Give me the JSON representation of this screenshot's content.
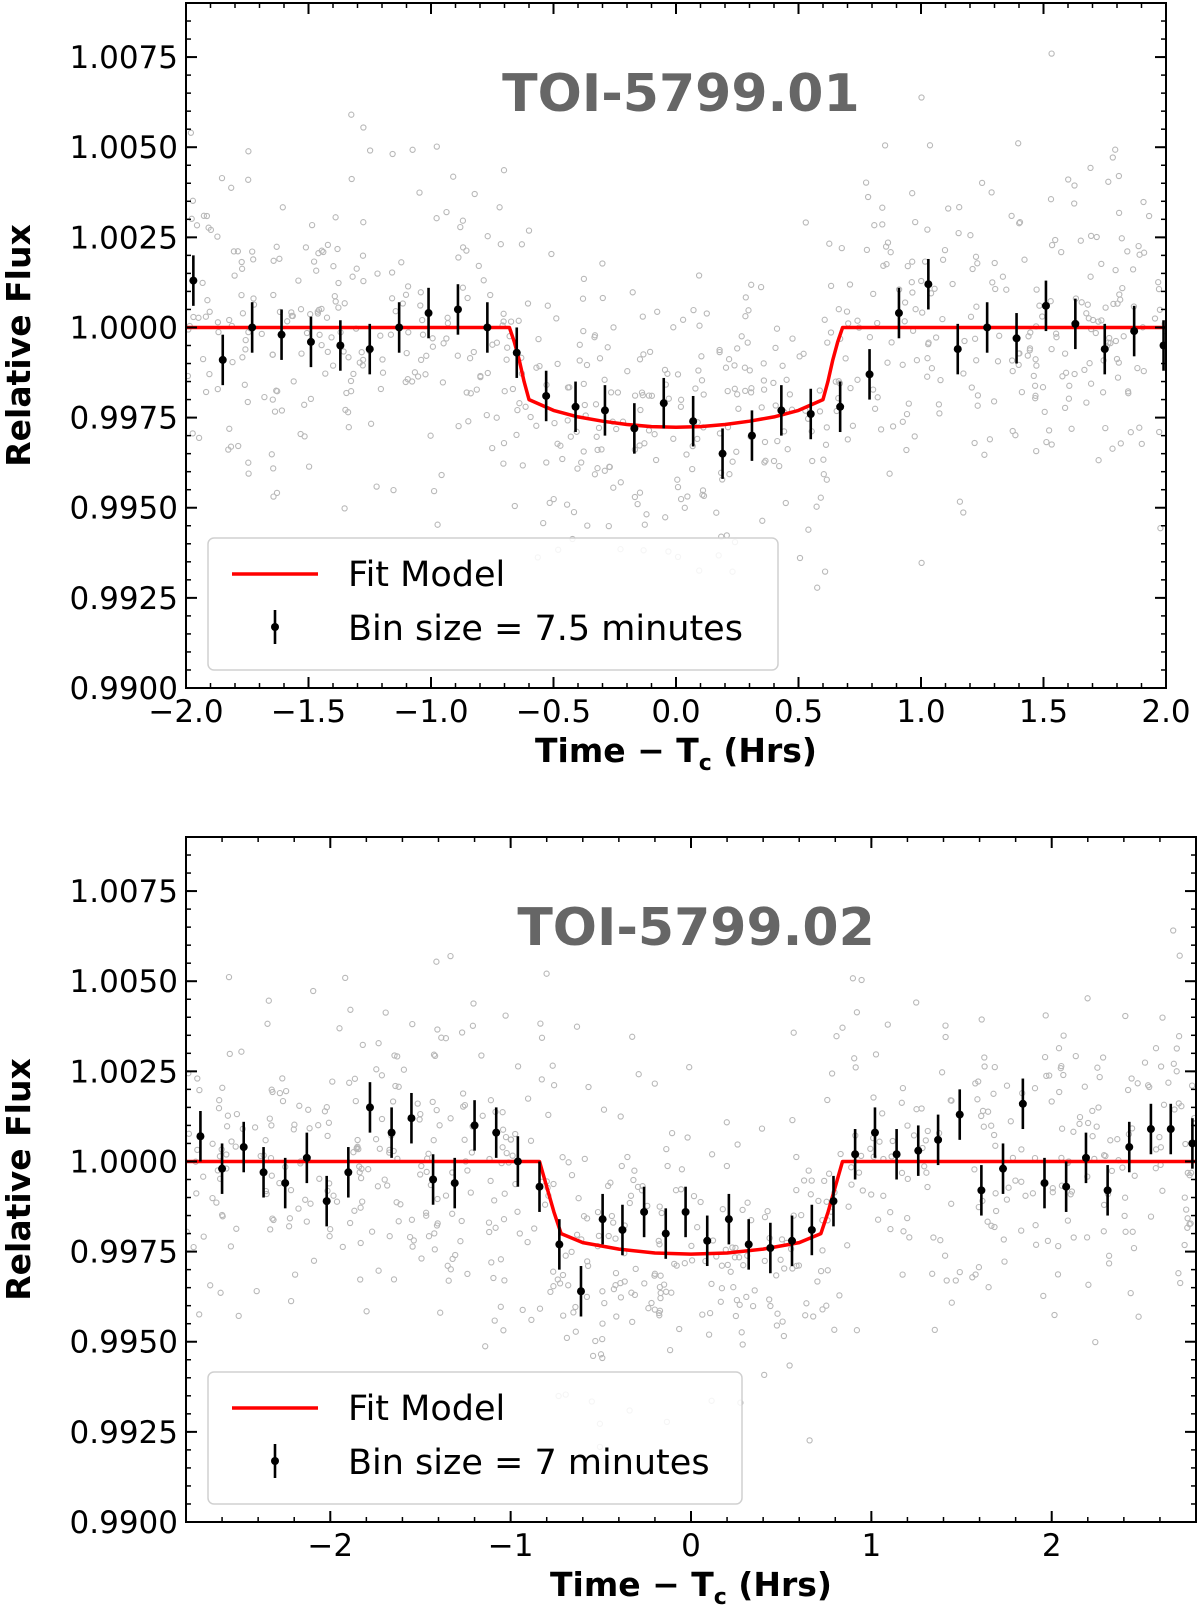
{
  "colors": {
    "model": "#ff0000",
    "binned": "#000000",
    "raw": "#b8b8b8",
    "title": "#666666"
  },
  "chart_data": [
    {
      "type": "scatter",
      "title": "TOI-5799.01",
      "xlabel": "Time − T",
      "xlabel_sub": "c",
      "xlabel_suffix": " (Hrs)",
      "ylabel": "Relative Flux",
      "xlim": [
        -2.0,
        2.0
      ],
      "ylim": [
        0.99,
        1.009
      ],
      "xticks": [
        -2.0,
        -1.5,
        -1.0,
        -0.5,
        0.0,
        0.5,
        1.0,
        1.5,
        2.0
      ],
      "xtick_labels": [
        "−2.0",
        "−1.5",
        "−1.0",
        "−0.5",
        "0.0",
        "0.5",
        "1.0",
        "1.5",
        "2.0"
      ],
      "yticks": [
        0.99,
        0.9925,
        0.995,
        0.9975,
        1.0,
        1.0025,
        1.005,
        1.0075
      ],
      "ytick_labels": [
        "0.9900",
        "0.9925",
        "0.9950",
        "0.9975",
        "1.0000",
        "1.0025",
        "1.0050",
        "1.0075"
      ],
      "legend": {
        "model_label": "Fit Model",
        "binned_label": "Bin size = 7.5 minutes",
        "position": "lower-left"
      },
      "model": {
        "name": "Fit Model",
        "x": [
          -2.0,
          -0.68,
          -0.66,
          -0.64,
          -0.62,
          -0.6,
          -0.5,
          -0.4,
          -0.3,
          -0.2,
          -0.1,
          0.0,
          0.1,
          0.2,
          0.3,
          0.4,
          0.5,
          0.6,
          0.62,
          0.64,
          0.66,
          0.68,
          2.0
        ],
        "y": [
          1.0,
          1.0,
          0.9996,
          0.9991,
          0.9985,
          0.998,
          0.9977,
          0.99752,
          0.9974,
          0.99731,
          0.99725,
          0.99723,
          0.99725,
          0.99731,
          0.9974,
          0.99752,
          0.9977,
          0.998,
          0.9985,
          0.9991,
          0.9996,
          1.0,
          1.0
        ]
      },
      "binned": {
        "name": "Bin size = 7.5 minutes",
        "x": [
          -1.97,
          -1.85,
          -1.73,
          -1.61,
          -1.49,
          -1.37,
          -1.25,
          -1.13,
          -1.01,
          -0.89,
          -0.77,
          -0.65,
          -0.53,
          -0.41,
          -0.29,
          -0.17,
          -0.05,
          0.07,
          0.19,
          0.31,
          0.43,
          0.55,
          0.67,
          0.79,
          0.91,
          1.03,
          1.15,
          1.27,
          1.39,
          1.51,
          1.63,
          1.75,
          1.87,
          1.99
        ],
        "y": [
          1.0013,
          0.9991,
          1.0,
          0.9998,
          0.9996,
          0.9995,
          0.9994,
          1.0,
          1.0004,
          1.0005,
          1.0,
          0.9993,
          0.9981,
          0.9978,
          0.9977,
          0.9972,
          0.9979,
          0.9974,
          0.9965,
          0.997,
          0.9977,
          0.9976,
          0.9978,
          0.9987,
          1.0004,
          1.0012,
          0.9994,
          1.0,
          0.9997,
          1.0006,
          1.0001,
          0.9994,
          0.9999,
          0.9995
        ],
        "err": [
          0.0007,
          0.0007,
          0.0007,
          0.0007,
          0.0007,
          0.0007,
          0.0007,
          0.0007,
          0.0007,
          0.0007,
          0.0007,
          0.0007,
          0.0007,
          0.0007,
          0.0007,
          0.0007,
          0.0007,
          0.0007,
          0.0007,
          0.0007,
          0.0007,
          0.0007,
          0.0007,
          0.0007,
          0.0007,
          0.0007,
          0.0007,
          0.0007,
          0.0007,
          0.0007,
          0.0007,
          0.0007,
          0.0007,
          0.0007
        ]
      },
      "raw_points": {
        "name": "unbinned photometry",
        "count": 700,
        "center": 1.0,
        "scatter": 0.0022,
        "x_range": [
          -2.0,
          2.0
        ]
      }
    },
    {
      "type": "scatter",
      "title": "TOI-5799.02",
      "xlabel": "Time − T",
      "xlabel_sub": "c",
      "xlabel_suffix": " (Hrs)",
      "ylabel": "Relative Flux",
      "xlim": [
        -2.8,
        2.8
      ],
      "ylim": [
        0.99,
        1.009
      ],
      "xticks": [
        -2,
        -1,
        0,
        1,
        2
      ],
      "xtick_labels": [
        "−2",
        "−1",
        "0",
        "1",
        "2"
      ],
      "yticks": [
        0.99,
        0.9925,
        0.995,
        0.9975,
        1.0,
        1.0025,
        1.005,
        1.0075
      ],
      "ytick_labels": [
        "0.9900",
        "0.9925",
        "0.9950",
        "0.9975",
        "1.0000",
        "1.0025",
        "1.0050",
        "1.0075"
      ],
      "legend": {
        "model_label": "Fit Model",
        "binned_label": "Bin size = 7 minutes",
        "position": "lower-left"
      },
      "model": {
        "name": "Fit Model",
        "x": [
          -2.8,
          -0.84,
          -0.8,
          -0.76,
          -0.72,
          -0.6,
          -0.4,
          -0.2,
          0.0,
          0.2,
          0.4,
          0.6,
          0.72,
          0.76,
          0.8,
          0.84,
          2.8
        ],
        "y": [
          1.0,
          1.0,
          0.9993,
          0.9986,
          0.998,
          0.99775,
          0.99757,
          0.99746,
          0.99743,
          0.99746,
          0.99757,
          0.99775,
          0.998,
          0.9986,
          0.9993,
          1.0,
          1.0
        ]
      },
      "binned": {
        "name": "Bin size = 7 minutes",
        "x": [
          -2.72,
          -2.6,
          -2.48,
          -2.37,
          -2.25,
          -2.13,
          -2.02,
          -1.9,
          -1.78,
          -1.66,
          -1.55,
          -1.43,
          -1.31,
          -1.2,
          -1.08,
          -0.96,
          -0.84,
          -0.73,
          -0.61,
          -0.49,
          -0.38,
          -0.26,
          -0.14,
          -0.03,
          0.09,
          0.21,
          0.32,
          0.44,
          0.56,
          0.67,
          0.79,
          0.91,
          1.02,
          1.14,
          1.26,
          1.37,
          1.49,
          1.61,
          1.73,
          1.84,
          1.96,
          2.08,
          2.19,
          2.31,
          2.43,
          2.55,
          2.66,
          2.78
        ],
        "y": [
          1.0007,
          0.9998,
          1.0004,
          0.9997,
          0.9994,
          1.0001,
          0.9989,
          0.9997,
          1.0015,
          1.0008,
          1.0012,
          0.9995,
          0.9994,
          1.001,
          1.0008,
          1.0,
          0.9993,
          0.9977,
          0.9964,
          0.9984,
          0.9981,
          0.9986,
          0.998,
          0.9986,
          0.9978,
          0.9984,
          0.9977,
          0.9976,
          0.9978,
          0.9981,
          0.9989,
          1.0002,
          1.0008,
          1.0002,
          1.0003,
          1.0006,
          1.0013,
          0.9992,
          0.9998,
          1.0016,
          0.9994,
          0.9993,
          1.0001,
          0.9992,
          1.0004,
          1.0009,
          1.0009,
          1.0005
        ],
        "err": [
          0.0007,
          0.0007,
          0.0007,
          0.0007,
          0.0007,
          0.0007,
          0.0007,
          0.0007,
          0.0007,
          0.0007,
          0.0007,
          0.0007,
          0.0007,
          0.0007,
          0.0007,
          0.0007,
          0.0007,
          0.0007,
          0.0007,
          0.0007,
          0.0007,
          0.0007,
          0.0007,
          0.0007,
          0.0007,
          0.0007,
          0.0007,
          0.0007,
          0.0007,
          0.0007,
          0.0007,
          0.0007,
          0.0007,
          0.0007,
          0.0007,
          0.0007,
          0.0007,
          0.0007,
          0.0007,
          0.0007,
          0.0007,
          0.0007,
          0.0007,
          0.0007,
          0.0007,
          0.0007,
          0.0007,
          0.0007
        ]
      },
      "raw_points": {
        "name": "unbinned photometry",
        "count": 700,
        "center": 1.0,
        "scatter": 0.0022,
        "x_range": [
          -2.8,
          2.8
        ]
      }
    }
  ]
}
